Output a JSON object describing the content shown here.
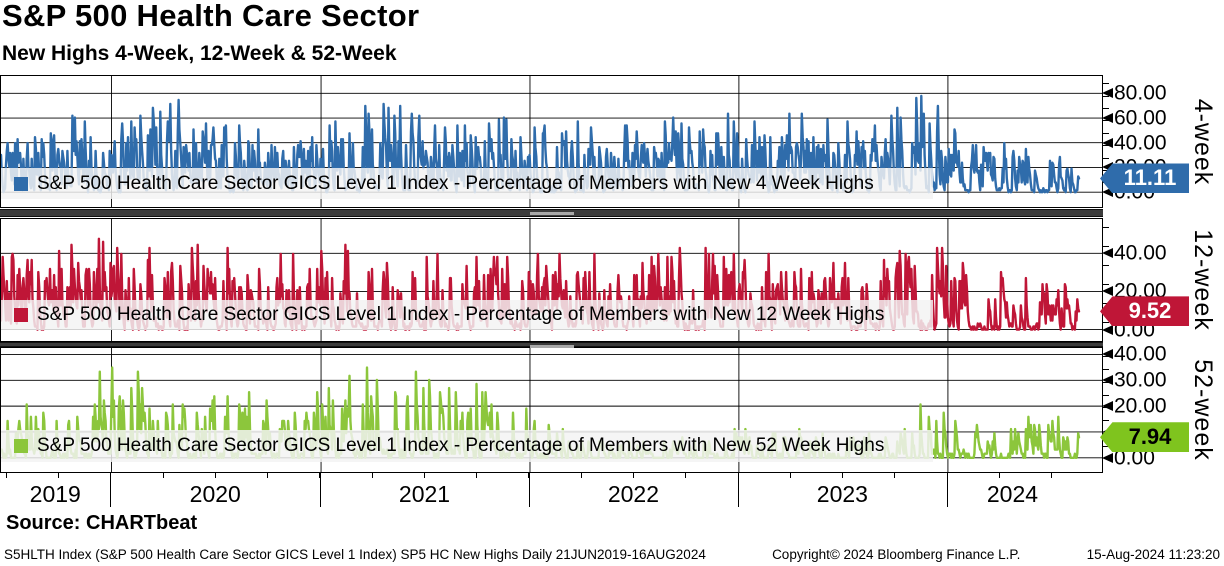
{
  "header": {
    "title": "S&P 500 Health Care Sector",
    "subtitle": "New Highs 4-Week, 12-Week & 52-Week"
  },
  "source_line": "Source: CHARTbeat",
  "footer": {
    "left": "S5HLTH Index (S&P 500 Health Care Sector GICS Level 1 Index) SP5 HC New Highs  Daily 21JUN2019-16AUG2024",
    "center": "Copyright© 2024 Bloomberg Finance L.P.",
    "right": "15-Aug-2024 11:23:20"
  },
  "x_axis": {
    "years": [
      "2019",
      "2020",
      "2021",
      "2022",
      "2023",
      "2024"
    ],
    "start_date": "21JUN2019",
    "end_date": "16AUG2024",
    "year_boundaries_fraction": [
      0.1025,
      0.2969,
      0.4907,
      0.6845,
      0.8784
    ]
  },
  "chart_data": [
    {
      "type": "line",
      "name": "4-week",
      "legend": "S&P 500 Health Care Sector GICS Level 1 Index - Percentage of Members with New 4 Week Highs",
      "color": "#2f6cab",
      "ylim": [
        -12,
        94
      ],
      "yticks": [
        0,
        20,
        40,
        60,
        80
      ],
      "yminor_step": 10,
      "last_value": 11.11,
      "value_step_pct": 1.5873,
      "badge": {
        "value": "11.11",
        "bg": "#2f6cab",
        "text_color": "#ffffff"
      },
      "envelope": [
        [
          0,
          55
        ],
        [
          0.05,
          65
        ],
        [
          0.12,
          60
        ],
        [
          0.16,
          80
        ],
        [
          0.2,
          60
        ],
        [
          0.25,
          55
        ],
        [
          0.3,
          60
        ],
        [
          0.35,
          80
        ],
        [
          0.4,
          62
        ],
        [
          0.45,
          66
        ],
        [
          0.5,
          55
        ],
        [
          0.55,
          62
        ],
        [
          0.6,
          55
        ],
        [
          0.65,
          76
        ],
        [
          0.7,
          60
        ],
        [
          0.74,
          68
        ],
        [
          0.78,
          56
        ],
        [
          0.82,
          62
        ],
        [
          0.86,
          88
        ],
        [
          0.88,
          55
        ],
        [
          0.9,
          42
        ],
        [
          0.93,
          46
        ],
        [
          0.96,
          40
        ],
        [
          0.98,
          48
        ],
        [
          1,
          30
        ]
      ],
      "render": {
        "seed": 101,
        "n": 1300,
        "p_hi": 0.06,
        "p_mid": 0.22
      }
    },
    {
      "type": "line",
      "name": "12-week",
      "legend": "S&P 500 Health Care Sector GICS Level 1 Index - Percentage of Members with New 12 Week Highs",
      "color": "#bf1637",
      "ylim": [
        -6,
        58
      ],
      "yticks": [
        0,
        20,
        40
      ],
      "yminor_step": 10,
      "last_value": 9.52,
      "value_step_pct": 1.5873,
      "badge": {
        "value": "9.52",
        "bg": "#bf1637",
        "text_color": "#ffffff"
      },
      "envelope": [
        [
          0,
          40
        ],
        [
          0.05,
          45
        ],
        [
          0.1,
          48
        ],
        [
          0.16,
          48
        ],
        [
          0.2,
          45
        ],
        [
          0.25,
          42
        ],
        [
          0.3,
          45
        ],
        [
          0.35,
          48
        ],
        [
          0.4,
          42
        ],
        [
          0.45,
          45
        ],
        [
          0.5,
          40
        ],
        [
          0.55,
          42
        ],
        [
          0.6,
          40
        ],
        [
          0.65,
          45
        ],
        [
          0.7,
          42
        ],
        [
          0.74,
          44
        ],
        [
          0.78,
          38
        ],
        [
          0.82,
          42
        ],
        [
          0.86,
          57
        ],
        [
          0.88,
          45
        ],
        [
          0.9,
          30
        ],
        [
          0.93,
          32
        ],
        [
          0.96,
          25
        ],
        [
          0.98,
          30
        ],
        [
          1,
          16
        ]
      ],
      "render": {
        "seed": 202,
        "n": 1300,
        "p_hi": 0.05,
        "p_mid": 0.18
      }
    },
    {
      "type": "line",
      "name": "52-week",
      "legend": "S&P 500 Health Care Sector GICS Level 1 Index - Percentage of Members with New 52 Week Highs",
      "color": "#8cc63c",
      "ylim": [
        -5.5,
        42.5
      ],
      "yticks": [
        0,
        10,
        20,
        30,
        40
      ],
      "yminor_step": 5,
      "last_value": 7.94,
      "value_step_pct": 1.5873,
      "badge": {
        "value": "7.94",
        "bg": "#7fc41e",
        "text_color": "#000000"
      },
      "envelope": [
        [
          0,
          18
        ],
        [
          0.04,
          25
        ],
        [
          0.08,
          30
        ],
        [
          0.11,
          45
        ],
        [
          0.14,
          25
        ],
        [
          0.18,
          20
        ],
        [
          0.22,
          28
        ],
        [
          0.26,
          22
        ],
        [
          0.3,
          30
        ],
        [
          0.33,
          38
        ],
        [
          0.36,
          35
        ],
        [
          0.4,
          40
        ],
        [
          0.44,
          30
        ],
        [
          0.48,
          25
        ],
        [
          0.52,
          15
        ],
        [
          0.56,
          8
        ],
        [
          0.6,
          6
        ],
        [
          0.64,
          10
        ],
        [
          0.68,
          12
        ],
        [
          0.72,
          10
        ],
        [
          0.76,
          14
        ],
        [
          0.8,
          12
        ],
        [
          0.84,
          16
        ],
        [
          0.87,
          27
        ],
        [
          0.9,
          20
        ],
        [
          0.93,
          12
        ],
        [
          0.96,
          18
        ],
        [
          0.98,
          20
        ],
        [
          1,
          10
        ]
      ],
      "render": {
        "seed": 303,
        "n": 1300,
        "p_hi": 0.035,
        "p_mid": 0.12
      }
    }
  ]
}
